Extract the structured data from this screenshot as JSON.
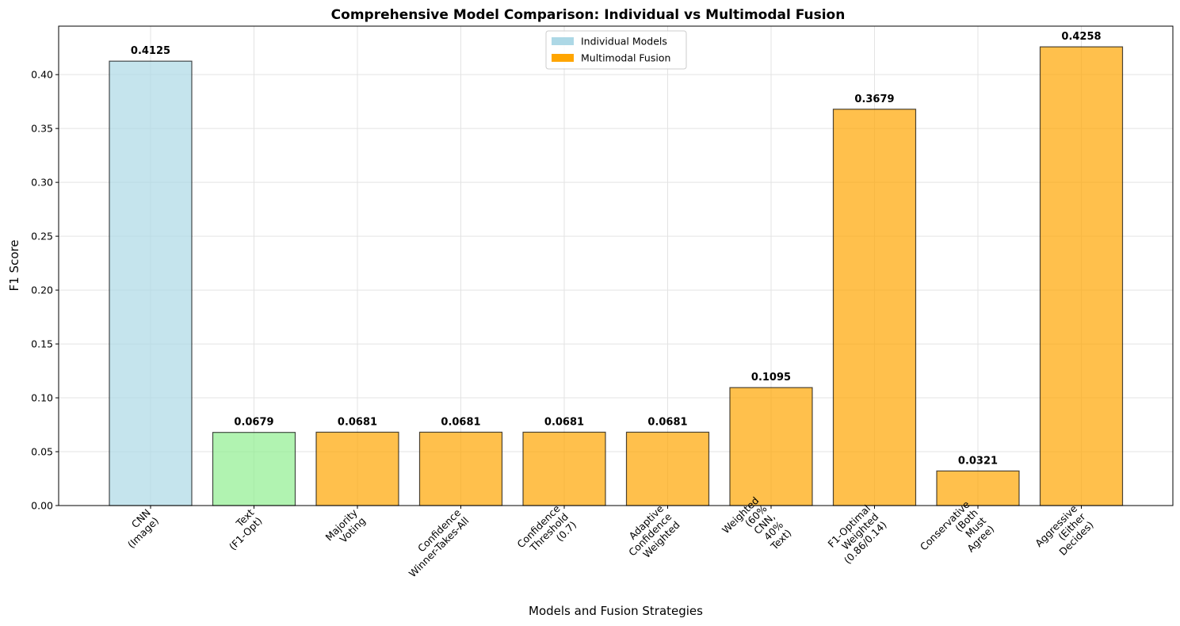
{
  "chart_data": {
    "type": "bar",
    "title": "Comprehensive Model Comparison: Individual vs Multimodal Fusion",
    "xlabel": "Models and Fusion Strategies",
    "ylabel": "F1 Score",
    "ylim": [
      0,
      0.445
    ],
    "yticks": [
      "0.00",
      "0.05",
      "0.10",
      "0.15",
      "0.20",
      "0.25",
      "0.30",
      "0.35",
      "0.40"
    ],
    "yticks_values": [
      0,
      0.05,
      0.1,
      0.15,
      0.2,
      0.25,
      0.3,
      0.35,
      0.4
    ],
    "grid": true,
    "legend_position": "top-center",
    "legend": [
      {
        "label": "Individual Models",
        "color": "#add8e6"
      },
      {
        "label": "Multimodal Fusion",
        "color": "#ffa500"
      }
    ],
    "categories": [
      [
        "CNN",
        "(Image)"
      ],
      [
        "Text",
        "(F1-Opt)"
      ],
      [
        "Majority",
        "Voting"
      ],
      [
        "Confidence",
        "Winner-Takes-All"
      ],
      [
        "Confidence",
        "Threshold",
        "(0.7)"
      ],
      [
        "Adaptive",
        "Confidence",
        "Weighted"
      ],
      [
        "Weighted",
        "(60%",
        "CNN,",
        "40%",
        "Text)"
      ],
      [
        "F1-Optimal",
        "Weighted",
        "(0.86/0.14)"
      ],
      [
        "Conservative",
        "(Both",
        "Must",
        "Agree)"
      ],
      [
        "Aggressive",
        "(Either",
        "Decides)"
      ]
    ],
    "values": [
      0.4125,
      0.0679,
      0.0681,
      0.0681,
      0.0681,
      0.0681,
      0.1095,
      0.3679,
      0.0321,
      0.4258
    ],
    "value_labels": [
      "0.4125",
      "0.0679",
      "0.0681",
      "0.0681",
      "0.0681",
      "0.0681",
      "0.1095",
      "0.3679",
      "0.0321",
      "0.4258"
    ],
    "bar_colors": [
      "#add8e6",
      "#90ee90",
      "#ffa500",
      "#ffa500",
      "#ffa500",
      "#ffa500",
      "#ffa500",
      "#ffa500",
      "#ffa500",
      "#ffa500"
    ]
  }
}
